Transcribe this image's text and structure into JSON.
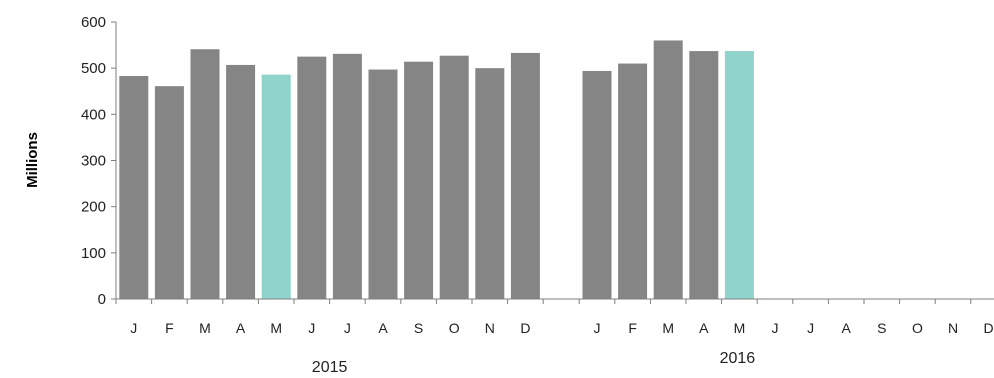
{
  "chart_data": {
    "type": "bar",
    "ylabel": "Millions",
    "ylim": [
      0,
      600
    ],
    "yticks": [
      0,
      100,
      200,
      300,
      400,
      500,
      600
    ],
    "grid": false,
    "legend": "none",
    "colors": {
      "default": "#858585",
      "highlight": "#8FD3CB",
      "axis": "#7f7f7f"
    },
    "groups": [
      {
        "label": "2015",
        "categories": [
          "J",
          "F",
          "M",
          "A",
          "M",
          "J",
          "J",
          "A",
          "S",
          "O",
          "N",
          "D"
        ],
        "values": [
          483,
          461,
          541,
          507,
          486,
          525,
          531,
          497,
          514,
          527,
          500,
          533
        ],
        "highlight": [
          4
        ]
      },
      {
        "label": "2016",
        "categories": [
          "J",
          "F",
          "M",
          "A",
          "M",
          "J",
          "J",
          "A",
          "S",
          "O",
          "N",
          "D"
        ],
        "values": [
          494,
          510,
          560,
          537,
          537,
          null,
          null,
          null,
          null,
          null,
          null,
          null
        ],
        "highlight": [
          4
        ]
      }
    ]
  }
}
